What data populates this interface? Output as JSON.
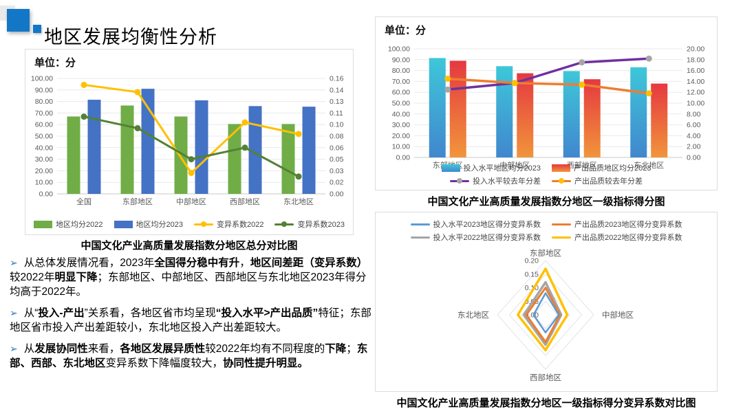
{
  "title": "地区发展均衡性分析",
  "accent_color": "#1377C8",
  "bullet_arrow_color": "#2E74B5",
  "charts": {
    "left": {
      "unit": "单位：分",
      "caption": "中国文化产业高质量发展指数分地区总分对比图"
    },
    "right_top": {
      "unit": "单位：分",
      "caption": "中国文化产业高质量发展指数分地区一级指标得分图"
    },
    "radar": {
      "caption": "中国文化产业高质量发展指数分地区一级指标得分变异系数对比图"
    }
  },
  "chart_data": [
    {
      "type": "bar+line",
      "title": "中国文化产业高质量发展指数分地区总分对比图",
      "unit": "单位：分",
      "categories": [
        "全国",
        "东部地区",
        "中部地区",
        "西部地区",
        "东北地区"
      ],
      "bar_series": [
        {
          "name": "地区均分2022",
          "color": "#70AD47",
          "values": [
            67,
            76.5,
            67,
            60.5,
            60.5
          ]
        },
        {
          "name": "地区均分2023",
          "color": "#4472C4",
          "values": [
            81.5,
            91,
            81,
            76,
            75.5
          ]
        }
      ],
      "line_series": [
        {
          "name": "变异系数2022",
          "color": "#FFC000",
          "values": [
            0.151,
            0.141,
            0.029,
            0.099,
            0.083
          ]
        },
        {
          "name": "变异系数2023",
          "color": "#538135",
          "values": [
            0.107,
            0.091,
            0.048,
            0.064,
            0.024
          ]
        }
      ],
      "y_left": {
        "min": 0,
        "max": 100,
        "step": 10
      },
      "y_right": {
        "min": 0,
        "max": 0.16,
        "step": 0.02
      },
      "grid": true,
      "legend_position": "bottom"
    },
    {
      "type": "bar+line",
      "title": "中国文化产业高质量发展指数分地区一级指标得分图",
      "unit": "单位：分",
      "categories": [
        "东部地区",
        "中部地区",
        "西部地区",
        "东北地区"
      ],
      "bar_series": [
        {
          "name": "投入水平地区均分2023",
          "color_top": "#3EC7D9",
          "color_bottom": "#4187CE",
          "values": [
            91.5,
            84,
            79.5,
            83
          ]
        },
        {
          "name": "产出品质地区均分2023",
          "color_top": "#E53940",
          "color_bottom": "#F1953B",
          "values": [
            89,
            77.5,
            72,
            68
          ]
        }
      ],
      "line_series": [
        {
          "name": "投入水平较去年分差",
          "color": "#7030A0",
          "marker_color": "#A6A6A6",
          "values": [
            12.5,
            13.7,
            17.5,
            18.2
          ]
        },
        {
          "name": "产出品质较去年分差",
          "color": "#ED7D31",
          "marker_color": "#FFC000",
          "values": [
            14.5,
            13.7,
            13.4,
            11.8
          ]
        }
      ],
      "y_left": {
        "min": 0,
        "max": 100,
        "step": 10
      },
      "y_right": {
        "min": 0,
        "max": 20,
        "step": 2
      },
      "grid": true,
      "legend_position": "bottom"
    },
    {
      "type": "radar",
      "title": "中国文化产业高质量发展指数分地区一级指标得分变异系数对比图",
      "axes": [
        "东部地区",
        "中部地区",
        "西部地区",
        "东北地区"
      ],
      "r_ticks": [
        0.0,
        0.05,
        0.1,
        0.15,
        0.2
      ],
      "r_max": 0.2,
      "series": [
        {
          "name": "投入水平2023地区得分变异系数",
          "color": "#5B9BD5",
          "values": [
            0.08,
            0.055,
            0.065,
            0.05
          ]
        },
        {
          "name": "产出品质2023地区得分变异系数",
          "color": "#ED7D31",
          "values": [
            0.1,
            0.06,
            0.1,
            0.08
          ]
        },
        {
          "name": "投入水平2022地区得分变异系数",
          "color": "#A5A5A5",
          "values": [
            0.12,
            0.065,
            0.11,
            0.09
          ]
        },
        {
          "name": "产出品质2022地区得分变异系数",
          "color": "#FFC000",
          "values": [
            0.17,
            0.09,
            0.13,
            0.115
          ]
        }
      ],
      "legend_position": "top"
    }
  ],
  "bullets": [
    [
      {
        "t": "从总体发展情况看，2023年",
        "b": false
      },
      {
        "t": "全国得分稳中有升",
        "b": true
      },
      {
        "t": "，",
        "b": false
      },
      {
        "t": "地区间差距（变异系数）",
        "b": true
      },
      {
        "t": "较2022年",
        "b": false
      },
      {
        "t": "明显下降",
        "b": true
      },
      {
        "t": "；东部地区、中部地区、西部地区与东北地区2023年得分均高于2022年。",
        "b": false
      }
    ],
    [
      {
        "t": "从“",
        "b": false
      },
      {
        "t": "投入-产出",
        "b": true
      },
      {
        "t": "”关系看，各地区省市均呈现",
        "b": false
      },
      {
        "t": "“投入水平>产出品质”",
        "b": true
      },
      {
        "t": "特征；东部地区省市投入产出差距较小，东北地区投入产出差距较大。",
        "b": false
      }
    ],
    [
      {
        "t": "从",
        "b": false
      },
      {
        "t": "发展协同性",
        "b": true
      },
      {
        "t": "来看，",
        "b": false
      },
      {
        "t": "各地区发展异质性",
        "b": true
      },
      {
        "t": "较2022年均有不同程度的",
        "b": false
      },
      {
        "t": "下降",
        "b": true
      },
      {
        "t": "；",
        "b": false
      },
      {
        "t": "东部、西部、东北地区",
        "b": true
      },
      {
        "t": "变异系数下降幅度较大，",
        "b": false
      },
      {
        "t": "协同性提升明显。",
        "b": true
      }
    ]
  ]
}
